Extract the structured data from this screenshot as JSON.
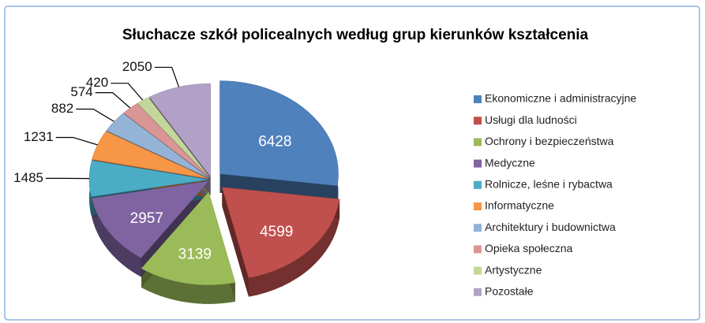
{
  "chart_data": {
    "type": "pie",
    "title": "Słuchacze szkół policealnych według  grup kierunków kształcenia",
    "categories": [
      "Ekonomiczne i administracyjne",
      "Usługi dla ludności",
      "Ochrony i bezpieczeństwa",
      "Medyczne",
      "Rolnicze, leśne i rybactwa",
      "Informatyczne",
      "Architektury i budownictwa",
      "Opieka społeczna",
      "Artystyczne",
      "Pozostałe"
    ],
    "values": [
      6428,
      4599,
      3139,
      2957,
      1485,
      1231,
      882,
      574,
      420,
      2050
    ],
    "colors": [
      "#4f81bd",
      "#c0504d",
      "#9bbb59",
      "#8064a2",
      "#4bacc6",
      "#f79646",
      "#95b3d7",
      "#da9694",
      "#c3d69b",
      "#b2a1c7"
    ],
    "legend": "right"
  }
}
